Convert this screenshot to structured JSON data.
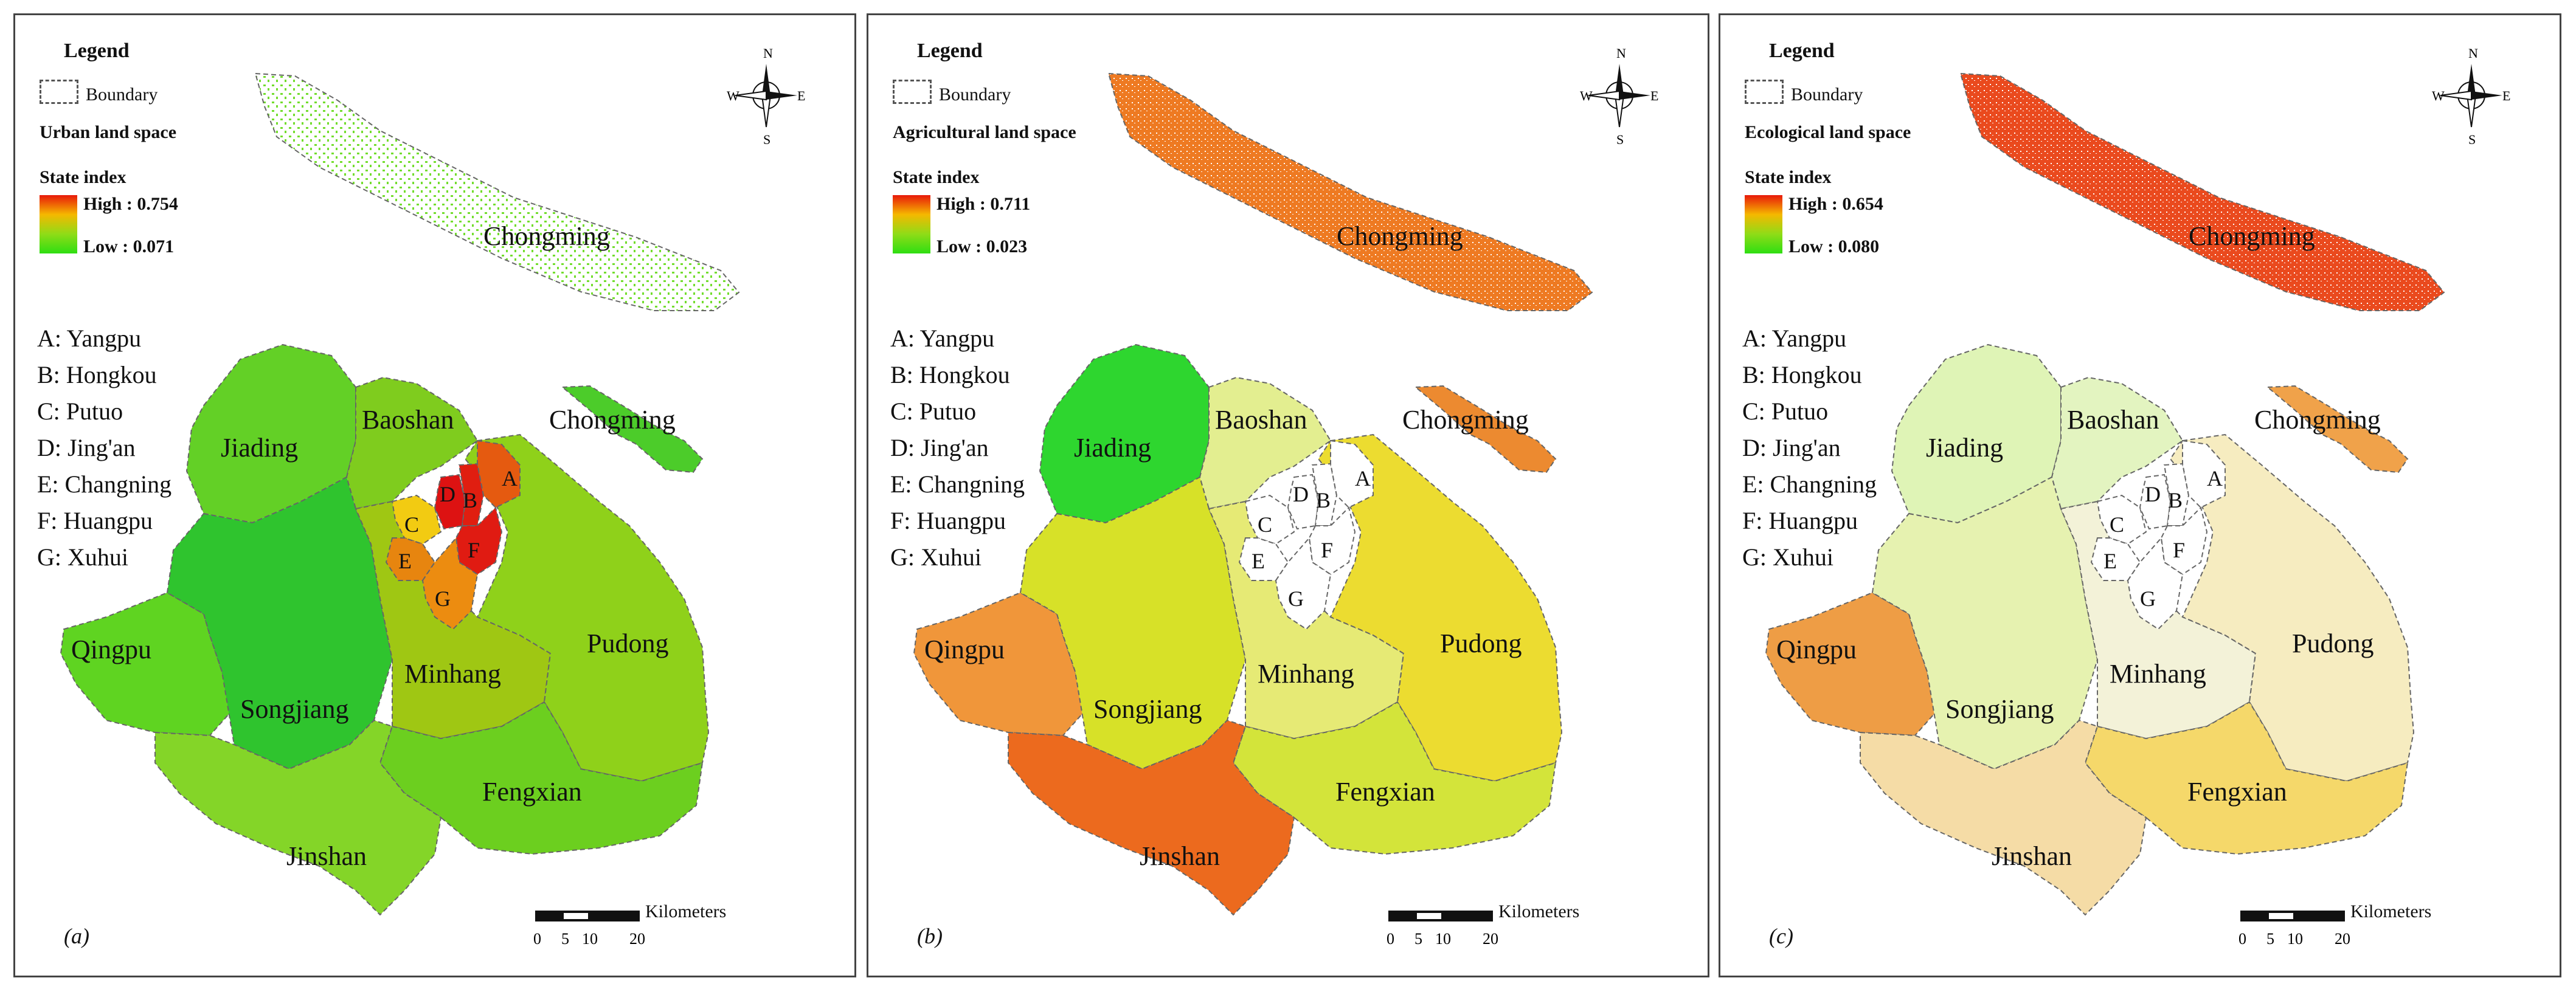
{
  "panels": [
    {
      "id": "(a)",
      "layer_label": "Urban land space",
      "state_index_high": "High : 0.754",
      "state_index_low": "Low : 0.071",
      "ramp_colors": [
        "#e8190a",
        "#f5b800",
        "#8fdc17",
        "#2ede12"
      ],
      "fills": {
        "chongming": "#73dd2e",
        "chongming_density": "sparse",
        "changxing": "#4ccc2a",
        "jiading": "#63d026",
        "baoshan": "#7fcc1e",
        "qingpu": "#5fd421",
        "songjiang": "#2fc42e",
        "minhang": "#9fc713",
        "pudong": "#8fd11a",
        "fengxian": "#6ccf1f",
        "jinshan": "#84d528",
        "A": "#e55a10",
        "B": "#e01e10",
        "C": "#f2cb12",
        "D": "#dd1212",
        "E": "#e7850f",
        "F": "#e01b12",
        "G": "#ec8c10"
      }
    },
    {
      "id": "(b)",
      "layer_label": "Agricultural land space",
      "state_index_high": "High : 0.711",
      "state_index_low": "Low : 0.023",
      "ramp_colors": [
        "#e8190a",
        "#f5b800",
        "#8fdc17",
        "#2ede12"
      ],
      "fills": {
        "chongming": "#ee7a22",
        "chongming_density": "dense",
        "changxing": "#ec8a30",
        "jiading": "#2ed62f",
        "baoshan": "#e3ee90",
        "qingpu": "#f0963a",
        "songjiang": "#d7e128",
        "minhang": "#e6ea75",
        "pudong": "#ecdc30",
        "fengxian": "#d3e43a",
        "jinshan": "#ec6a1e",
        "A": "#ffffff",
        "B": "#ffffff",
        "C": "#ffffff",
        "D": "#ffffff",
        "E": "#ffffff",
        "F": "#ffffff",
        "G": "#ffffff"
      }
    },
    {
      "id": "(c)",
      "layer_label": "Ecological land space",
      "state_index_high": "High : 0.654",
      "state_index_low": "Low : 0.080",
      "ramp_colors": [
        "#e8190a",
        "#f5b800",
        "#8fdc17",
        "#2ede12"
      ],
      "fills": {
        "chongming": "#ea4a1e",
        "chongming_density": "dense",
        "changxing": "#f0a24a",
        "jiading": "#dff4b6",
        "baoshan": "#e3f4c0",
        "qingpu": "#ee9d45",
        "songjiang": "#e6f2b0",
        "minhang": "#f3f2d8",
        "pudong": "#f6ecc0",
        "fengxian": "#f5d86a",
        "jinshan": "#f5dca6",
        "A": "#ffffff",
        "B": "#ffffff",
        "C": "#ffffff",
        "D": "#ffffff",
        "E": "#ffffff",
        "F": "#ffffff",
        "G": "#ffffff"
      }
    }
  ],
  "legend": {
    "title": "Legend",
    "boundary_label": "Boundary",
    "state_index_label": "State index"
  },
  "districts": [
    "A: Yangpu",
    "B: Hongkou",
    "C: Putuo",
    "D: Jing'an",
    "E: Changning",
    "F: Huangpu",
    "G: Xuhui"
  ],
  "map_labels": {
    "chongming_island": "Chongming",
    "chongming_small": "Chongming",
    "jiading": "Jiading",
    "baoshan": "Baoshan",
    "qingpu": "Qingpu",
    "songjiang": "Songjiang",
    "minhang": "Minhang",
    "pudong": "Pudong",
    "fengxian": "Fengxian",
    "jinshan": "Jinshan"
  },
  "district_letters": [
    "A",
    "B",
    "C",
    "D",
    "E",
    "F",
    "G"
  ],
  "compass": {
    "n": "N",
    "s": "S",
    "e": "E",
    "w": "W"
  },
  "scale": {
    "unit": "Kilometers",
    "ticks": [
      "0",
      "5",
      "10",
      "20"
    ]
  }
}
